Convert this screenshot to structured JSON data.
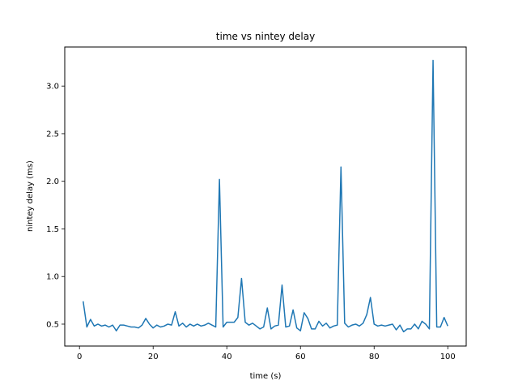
{
  "chart_data": {
    "type": "line",
    "title": "time vs nintey delay",
    "xlabel": "time (s)",
    "ylabel": "nintey delay (ms)",
    "xlim": [
      -4,
      105
    ],
    "ylim": [
      0.27,
      3.41
    ],
    "xticks": [
      0,
      20,
      40,
      60,
      80,
      100
    ],
    "yticks": [
      0.5,
      1.0,
      1.5,
      2.0,
      2.5,
      3.0
    ],
    "xtick_labels": [
      "0",
      "20",
      "40",
      "60",
      "80",
      "100"
    ],
    "ytick_labels": [
      "0.5",
      "1.0",
      "1.5",
      "2.0",
      "2.5",
      "3.0"
    ],
    "grid": false,
    "color": "#1f77b4",
    "series": [
      {
        "x": [
          1,
          2,
          3,
          4,
          5,
          6,
          7,
          8,
          9,
          10,
          11,
          12,
          13,
          14,
          15,
          16,
          17,
          18,
          19,
          20,
          21,
          22,
          23,
          24,
          25,
          26,
          27,
          28,
          29,
          30,
          31,
          32,
          33,
          34,
          35,
          36,
          37,
          38,
          39,
          40,
          41,
          42,
          43,
          44,
          45,
          46,
          47,
          48,
          49,
          50,
          51,
          52,
          53,
          54,
          55,
          56,
          57,
          58,
          59,
          60,
          61,
          62,
          63,
          64,
          65,
          66,
          67,
          68,
          69,
          70,
          71,
          72,
          73,
          74,
          75,
          76,
          77,
          78,
          79,
          80,
          81,
          82,
          83,
          84,
          85,
          86,
          87,
          88,
          89,
          90,
          91,
          92,
          93,
          94,
          95,
          96,
          97,
          98,
          99,
          100
        ],
        "y": [
          0.74,
          0.47,
          0.55,
          0.48,
          0.5,
          0.48,
          0.49,
          0.47,
          0.49,
          0.43,
          0.49,
          0.49,
          0.48,
          0.47,
          0.47,
          0.46,
          0.49,
          0.56,
          0.5,
          0.46,
          0.49,
          0.47,
          0.48,
          0.5,
          0.49,
          0.63,
          0.48,
          0.51,
          0.47,
          0.5,
          0.48,
          0.5,
          0.48,
          0.49,
          0.51,
          0.49,
          0.47,
          2.02,
          0.47,
          0.52,
          0.52,
          0.52,
          0.57,
          0.98,
          0.52,
          0.49,
          0.51,
          0.48,
          0.45,
          0.47,
          0.67,
          0.45,
          0.48,
          0.49,
          0.91,
          0.47,
          0.48,
          0.65,
          0.46,
          0.43,
          0.62,
          0.56,
          0.45,
          0.45,
          0.53,
          0.48,
          0.51,
          0.46,
          0.48,
          0.49,
          2.15,
          0.51,
          0.47,
          0.49,
          0.5,
          0.48,
          0.51,
          0.6,
          0.78,
          0.5,
          0.48,
          0.49,
          0.48,
          0.49,
          0.5,
          0.44,
          0.49,
          0.42,
          0.45,
          0.45,
          0.5,
          0.45,
          0.53,
          0.5,
          0.45,
          3.27,
          0.47,
          0.47,
          0.57,
          0.48
        ]
      }
    ]
  }
}
